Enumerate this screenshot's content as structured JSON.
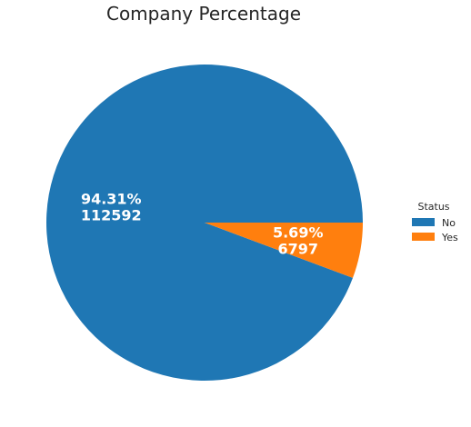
{
  "chart_data": {
    "type": "pie",
    "title": "Company Percentage",
    "legend_title": "Status",
    "legend_position": "right",
    "start_angle_deg": 0,
    "direction": "counterclockwise",
    "slices": [
      {
        "label": "No",
        "value": 112592,
        "percent_label": "94.31%",
        "count_label": "112592",
        "color": "#1f77b4"
      },
      {
        "label": "Yes",
        "value": 6797,
        "percent_label": "5.69%",
        "count_label": "6797",
        "color": "#ff7f0e"
      }
    ]
  }
}
